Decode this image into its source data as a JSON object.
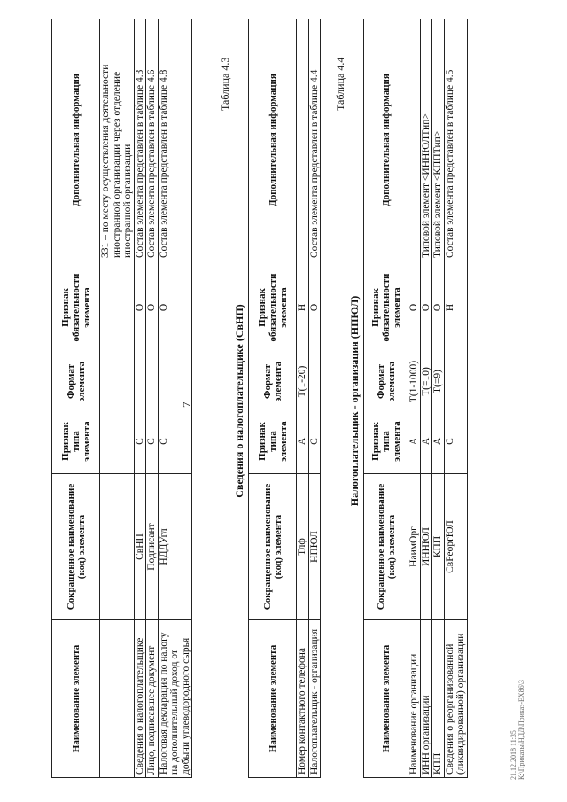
{
  "page_number": "7",
  "columns": [
    "Наименование элемента",
    "Сокращенное наименование (код) элемента",
    "Признак типа элемента",
    "Формат элемента",
    "Признак обязательности элемента",
    "Дополнительная информация"
  ],
  "table_cont": {
    "rows": [
      [
        "",
        "",
        "",
        "",
        "",
        "331 – по месту осуществления деятельности иностранной организации через отделение иностранной организации"
      ],
      [
        "Сведения о налогоплательщике",
        "СвНП",
        "С",
        "",
        "О",
        "Состав элемента представлен в таблице 4.3"
      ],
      [
        "Лицо, подписавшее документ",
        "Подписант",
        "С",
        "",
        "О",
        "Состав элемента представлен в таблице 4.6"
      ],
      [
        "Налоговая декларация по налогу на дополнительный доход от добычи углеводородного сырья",
        "НДДУгл",
        "С",
        "",
        "О",
        "Состав элемента представлен в таблице 4.8"
      ]
    ]
  },
  "table_4_3": {
    "caption": "Таблица 4.3",
    "title": "Сведения о налогоплательщике (СвНП)",
    "rows": [
      [
        "Номер контактного телефона",
        "Тлф",
        "А",
        "Т(1-20)",
        "Н",
        ""
      ],
      [
        "Налогоплательщик - организация",
        "НПЮЛ",
        "С",
        "",
        "О",
        "Состав элемента представлен в таблице 4.4"
      ]
    ]
  },
  "table_4_4": {
    "caption": "Таблица 4.4",
    "title": "Налогоплательщик - организация (НПЮЛ)",
    "rows": [
      [
        "Наименование организации",
        "НаимОрг",
        "А",
        "Т(1-1000)",
        "О",
        ""
      ],
      [
        "ИНН организации",
        "ИННЮЛ",
        "А",
        "Т(=10)",
        "О",
        "Типовой элемент <ИННЮЛТип>"
      ],
      [
        "КПП",
        "КПП",
        "А",
        "Т(=9)",
        "О",
        "Типовой элемент <КППТип>"
      ],
      [
        "Сведения о реорганизованной (ликвидированной) организации",
        "СвРеоргЮЛ",
        "С",
        "",
        "Н",
        "Состав элемента представлен в таблице 4.5"
      ]
    ]
  },
  "footer": {
    "line1": "21.12.2018 11:35",
    "line2": "К:\\Приказы\\НДД\\Приказ-ЕХ86\\3"
  }
}
